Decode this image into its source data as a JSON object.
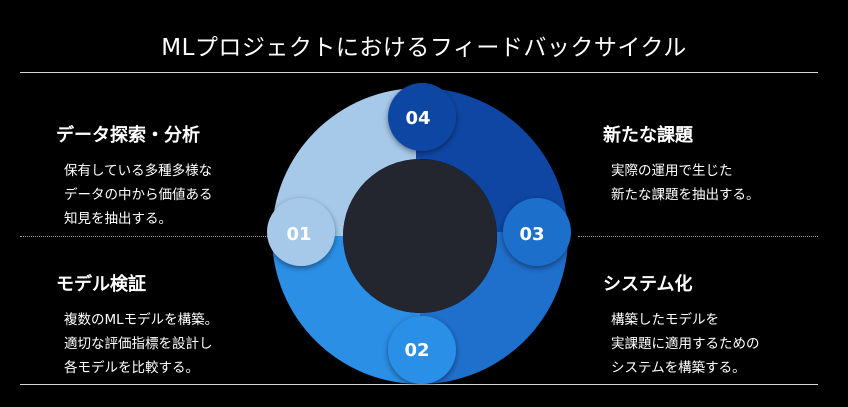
{
  "title": "MLプロジェクトにおけるフィードバックサイクル",
  "colors": {
    "background": "#000000",
    "hub": "#23262e",
    "seg_01": "#a6c9ea",
    "seg_02": "#2b8fe6",
    "seg_03": "#1f6fcc",
    "seg_04": "#0f46a3"
  },
  "segments": [
    {
      "num": "01"
    },
    {
      "num": "02"
    },
    {
      "num": "03"
    },
    {
      "num": "04"
    }
  ],
  "blocks": {
    "analysis": {
      "heading": "データ探索・分析",
      "lines": [
        "保有している多種多様な",
        "データの中から価値ある",
        "知見を抽出する。"
      ]
    },
    "model": {
      "heading": "モデル検証",
      "lines": [
        "複数のMLモデルを構築。",
        "適切な評価指標を設計し",
        "各モデルを比較する。"
      ]
    },
    "issue": {
      "heading": "新たな課題",
      "lines": [
        "実際の運用で生じた",
        "新たな課題を抽出する。"
      ]
    },
    "system": {
      "heading": "システム化",
      "lines": [
        "構築したモデルを",
        "実課題に適用するための",
        "システムを構築する。"
      ]
    }
  }
}
